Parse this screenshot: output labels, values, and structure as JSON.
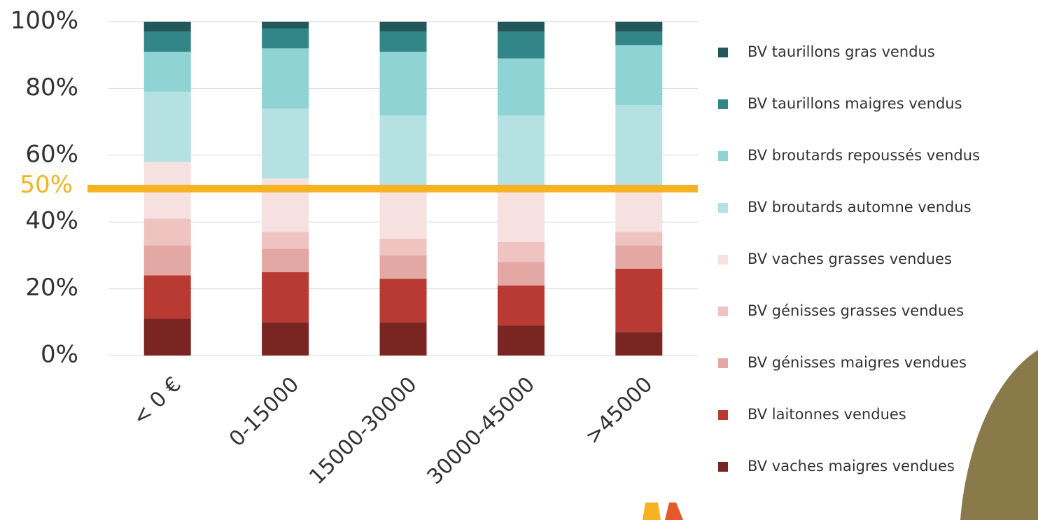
{
  "chart_data": {
    "type": "stacked_bar",
    "categories": [
      "< 0 €",
      "0-15000",
      "15000-30000",
      "30000-45000",
      ">45000"
    ],
    "series": [
      {
        "name": "BV vaches maigres vendues",
        "color": "#7b2522",
        "values": [
          11,
          10,
          10,
          9,
          7
        ]
      },
      {
        "name": "BV laitonnes vendues",
        "color": "#b83a33",
        "values": [
          13,
          15,
          13,
          12,
          19
        ]
      },
      {
        "name": "BV génisses maigres vendues",
        "color": "#e3a8a3",
        "values": [
          9,
          7,
          7,
          7,
          7
        ]
      },
      {
        "name": "BV génisses grasses vendues",
        "color": "#efc3c0",
        "values": [
          8,
          5,
          5,
          6,
          4
        ]
      },
      {
        "name": "BV vaches grasses vendues",
        "color": "#f6e1e0",
        "values": [
          17,
          16,
          15,
          16,
          13
        ]
      },
      {
        "name": "BV broutards automne vendus",
        "color": "#b5e1e2",
        "values": [
          21,
          21,
          22,
          22,
          25
        ]
      },
      {
        "name": "BV broutards repoussés vendus",
        "color": "#8fd3d4",
        "values": [
          12,
          18,
          19,
          17,
          18
        ]
      },
      {
        "name": "BV taurillons maigres vendus",
        "color": "#328688",
        "values": [
          6,
          6,
          6,
          8,
          4
        ]
      },
      {
        "name": "BV taurillons gras vendus",
        "color": "#22585a",
        "values": [
          3,
          2,
          3,
          3,
          3
        ]
      }
    ],
    "ylim": [
      0,
      100
    ],
    "yticks": [
      {
        "value": 0,
        "label": "0%"
      },
      {
        "value": 20,
        "label": "20%"
      },
      {
        "value": 40,
        "label": "40%"
      },
      {
        "value": 60,
        "label": "60%"
      },
      {
        "value": 80,
        "label": "80%"
      },
      {
        "value": 100,
        "label": "100%"
      }
    ],
    "grid": true,
    "reference_line": {
      "value": 50,
      "label": "50%",
      "color": "#f5b324"
    },
    "legend": "right"
  }
}
